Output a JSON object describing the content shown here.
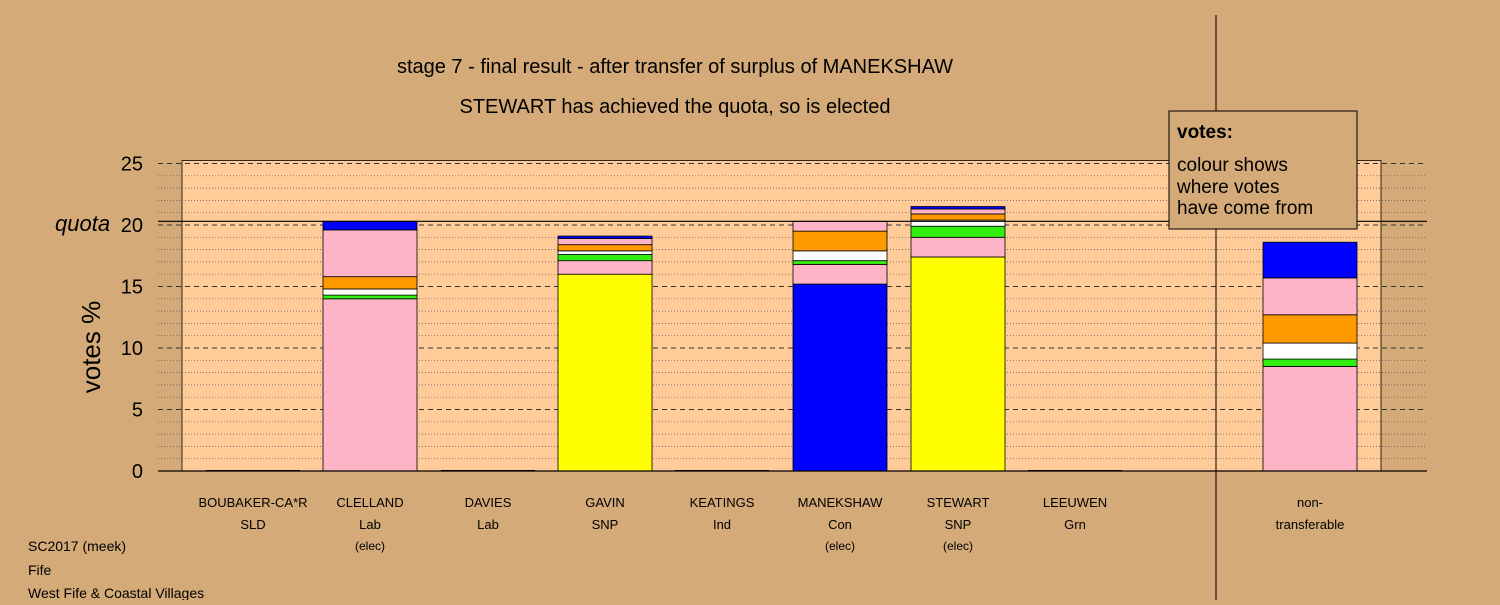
{
  "chart_data": {
    "type": "bar",
    "title": "stage 7 - final result - after transfer of surplus of MANEKSHAW",
    "subtitle": "STEWART has achieved the quota, so is elected",
    "ylabel": "votes %",
    "quota_label": "quota",
    "quota_value": 20.3,
    "ylim": [
      0,
      25
    ],
    "yticks": [
      "0",
      "5",
      "10",
      "15",
      "20",
      "25"
    ],
    "legend": {
      "title": "votes:",
      "lines": [
        "colour shows",
        "where votes",
        "have come from"
      ],
      "placement": "top-right"
    },
    "colors": {
      "pink": "#ffb3c6",
      "green": "#33ee11",
      "white": "#ffffff",
      "orange": "#ff9900",
      "blue": "#0000ff",
      "yellow": "#ffff00",
      "black": "#000000",
      "plot_bg": "#ffcc99",
      "page_bg": "#d4aa78"
    },
    "categories": [
      {
        "name": "BOUBAKER-CA*R",
        "party": "SLD",
        "status": "",
        "segments": []
      },
      {
        "name": "CLELLAND",
        "party": "Lab",
        "status": "(elec)",
        "segments": [
          {
            "color": "pink",
            "value": 14.0
          },
          {
            "color": "green",
            "value": 0.3
          },
          {
            "color": "white",
            "value": 0.5
          },
          {
            "color": "orange",
            "value": 1.0
          },
          {
            "color": "pink",
            "value": 3.8
          },
          {
            "color": "blue",
            "value": 0.7
          }
        ]
      },
      {
        "name": "DAVIES",
        "party": "Lab",
        "status": "",
        "segments": []
      },
      {
        "name": "GAVIN",
        "party": "SNP",
        "status": "",
        "segments": [
          {
            "color": "yellow",
            "value": 16.0
          },
          {
            "color": "pink",
            "value": 1.1
          },
          {
            "color": "green",
            "value": 0.5
          },
          {
            "color": "white",
            "value": 0.3
          },
          {
            "color": "orange",
            "value": 0.5
          },
          {
            "color": "pink",
            "value": 0.5
          },
          {
            "color": "blue",
            "value": 0.2
          }
        ]
      },
      {
        "name": "KEATINGS",
        "party": "Ind",
        "status": "",
        "segments": []
      },
      {
        "name": "MANEKSHAW",
        "party": "Con",
        "status": "(elec)",
        "segments": [
          {
            "color": "blue",
            "value": 15.2
          },
          {
            "color": "pink",
            "value": 1.6
          },
          {
            "color": "green",
            "value": 0.3
          },
          {
            "color": "white",
            "value": 0.8
          },
          {
            "color": "orange",
            "value": 1.6
          },
          {
            "color": "pink",
            "value": 0.8
          }
        ]
      },
      {
        "name": "STEWART",
        "party": "SNP",
        "status": "(elec)",
        "segments": [
          {
            "color": "yellow",
            "value": 17.4
          },
          {
            "color": "pink",
            "value": 1.6
          },
          {
            "color": "green",
            "value": 0.9
          },
          {
            "color": "white",
            "value": 0.5
          },
          {
            "color": "orange",
            "value": 0.5
          },
          {
            "color": "pink",
            "value": 0.4
          },
          {
            "color": "blue",
            "value": 0.2
          }
        ]
      },
      {
        "name": "LEEUWEN",
        "party": "Grn",
        "status": "",
        "segments": []
      },
      {
        "name": "non-",
        "party": "transferable",
        "status": "",
        "segments": [
          {
            "color": "pink",
            "value": 8.5
          },
          {
            "color": "green",
            "value": 0.6
          },
          {
            "color": "white",
            "value": 1.3
          },
          {
            "color": "orange",
            "value": 2.3
          },
          {
            "color": "pink",
            "value": 3.0
          },
          {
            "color": "blue",
            "value": 2.9
          }
        ]
      }
    ],
    "footer": {
      "line1": "SC2017 (meek)",
      "line2": "Fife",
      "line3": "West Fife & Coastal Villages"
    }
  }
}
